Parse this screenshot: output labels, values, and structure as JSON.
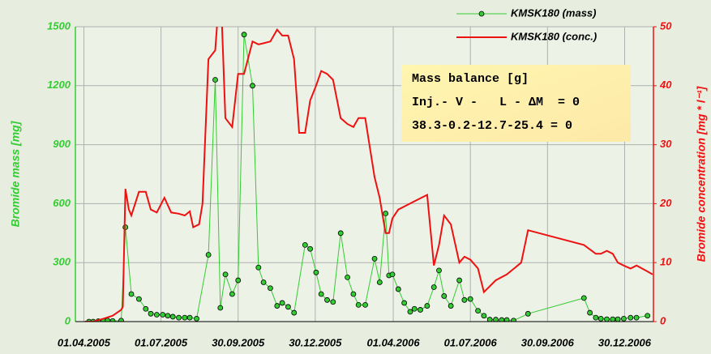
{
  "chart_data": {
    "type": "line",
    "legend_text": [
      "Mass balance [g]",
      "Inj.- V -   L - ΔM  = 0",
      "38.3-0.2-12.7-25.4 = 0"
    ],
    "ylabel": "Bromide mass [mg]",
    "y2label": "Bromide concentration [mg * l⁻¹]",
    "xlim": [
      "22.03.2005",
      "02.02.2007"
    ],
    "xticks": [
      "01.04.2005",
      "01.07.2005",
      "30.09.2005",
      "30.12.2005",
      "01.04.2006",
      "01.07.2006",
      "30.09.2006",
      "30.12.2006"
    ],
    "ylim": [
      0,
      1500
    ],
    "yticks": [
      0,
      300,
      600,
      900,
      1200,
      1500
    ],
    "y2lim": [
      0,
      50
    ],
    "y2ticks": [
      0,
      10,
      20,
      30,
      40,
      50
    ],
    "grid": true,
    "legend": "top-right",
    "series": [
      {
        "name": "KMSK180 (mass)",
        "color": "#33cc33",
        "marker": true,
        "x": [
          "07.04.2005",
          "12.04.2005",
          "18.04.2005",
          "24.04.2005",
          "29.04.2005",
          "05.05.2005",
          "15.05.2005",
          "20.05.2005",
          "27.05.2005",
          "05.06.2005",
          "13.06.2005",
          "19.06.2005",
          "26.06.2005",
          "03.07.2005",
          "09.07.2005",
          "15.07.2005",
          "22.07.2005",
          "29.07.2005",
          "04.08.2005",
          "12.08.2005",
          "26.08.2005",
          "03.09.2005",
          "09.09.2005",
          "15.09.2005",
          "23.09.2005",
          "30.09.2005",
          "07.10.2005",
          "17.10.2005",
          "24.10.2005",
          "30.10.2005",
          "07.11.2005",
          "15.11.2005",
          "21.11.2005",
          "28.11.2005",
          "05.12.2005",
          "18.12.2005",
          "24.12.2005",
          "31.12.2005",
          "06.01.2006",
          "13.01.2006",
          "20.01.2006",
          "29.01.2006",
          "06.02.2006",
          "13.02.2006",
          "19.02.2006",
          "27.02.2006",
          "10.03.2006",
          "16.03.2006",
          "23.03.2006",
          "27.03.2006",
          "31.03.2006",
          "07.04.2006",
          "14.04.2006",
          "21.04.2006",
          "26.04.2006",
          "03.05.2006",
          "11.05.2006",
          "19.05.2006",
          "25.05.2006",
          "31.05.2006",
          "08.06.2006",
          "18.06.2006",
          "24.06.2006",
          "01.07.2006",
          "10.07.2006",
          "17.07.2006",
          "24.07.2006",
          "31.07.2006",
          "07.08.2006",
          "13.08.2006",
          "21.08.2006",
          "07.09.2006",
          "12.11.2006",
          "19.11.2006",
          "26.11.2006",
          "02.12.2006",
          "09.12.2006",
          "16.12.2006",
          "22.12.2006",
          "29.12.2006",
          "06.01.2007",
          "13.01.2007",
          "26.01.2007"
        ],
        "values": [
          0,
          0,
          2,
          3,
          5,
          3,
          5,
          480,
          140,
          115,
          65,
          40,
          35,
          35,
          30,
          25,
          20,
          20,
          20,
          15,
          340,
          1230,
          70,
          240,
          140,
          210,
          1460,
          1200,
          275,
          200,
          170,
          80,
          95,
          75,
          45,
          390,
          370,
          250,
          140,
          110,
          100,
          450,
          225,
          140,
          85,
          85,
          320,
          200,
          550,
          235,
          240,
          165,
          95,
          50,
          65,
          60,
          80,
          175,
          260,
          130,
          80,
          210,
          110,
          115,
          55,
          30,
          10,
          10,
          8,
          8,
          5,
          40,
          120,
          45,
          20,
          15,
          12,
          12,
          12,
          15,
          20,
          20,
          30
        ]
      },
      {
        "name": "KMSK180 (conc.)",
        "color": "#ee1111",
        "axis": "y2",
        "marker": false,
        "x": [
          "02.04.2005",
          "12.04.2005",
          "24.04.2005",
          "05.05.2005",
          "15.05.2005",
          "17.05.2005",
          "20.05.2005",
          "24.05.2005",
          "27.05.2005",
          "05.06.2005",
          "13.06.2005",
          "19.06.2005",
          "26.06.2005",
          "05.07.2005",
          "13.07.2005",
          "22.07.2005",
          "29.07.2005",
          "04.08.2005",
          "08.08.2005",
          "15.08.2005",
          "19.08.2005",
          "26.08.2005",
          "03.09.2005",
          "09.09.2005",
          "15.09.2005",
          "23.09.2005",
          "30.09.2005",
          "07.10.2005",
          "17.10.2005",
          "24.10.2005",
          "30.10.2005",
          "07.11.2005",
          "15.11.2005",
          "21.11.2005",
          "28.11.2005",
          "05.12.2005",
          "11.12.2005",
          "18.12.2005",
          "24.12.2005",
          "31.12.2005",
          "06.01.2006",
          "13.01.2006",
          "20.01.2006",
          "29.01.2006",
          "06.02.2006",
          "13.02.2006",
          "19.02.2006",
          "27.02.2006",
          "10.03.2006",
          "16.03.2006",
          "23.03.2006",
          "27.03.2006",
          "31.03.2006",
          "07.04.2006",
          "11.05.2006",
          "19.05.2006",
          "25.05.2006",
          "31.05.2006",
          "08.06.2006",
          "18.06.2006",
          "24.06.2006",
          "01.07.2006",
          "10.07.2006",
          "17.07.2006",
          "31.07.2006",
          "13.08.2006",
          "30.08.2006",
          "07.09.2006",
          "12.11.2006",
          "26.11.2006",
          "02.12.2006",
          "09.12.2006",
          "16.12.2006",
          "22.12.2006",
          "29.12.2006",
          "06.01.2007",
          "13.01.2007",
          "26.01.2007",
          "01.02.2007"
        ],
        "values": [
          0,
          0,
          0.5,
          1,
          2,
          2.5,
          22.5,
          19,
          18,
          22,
          22,
          19,
          18.5,
          21,
          18.5,
          18.3,
          18,
          18.7,
          16,
          16.5,
          20,
          44.5,
          46,
          58,
          34.5,
          33,
          42,
          42,
          47.5,
          47,
          47.2,
          47.5,
          49.5,
          48.5,
          48.5,
          44.5,
          32,
          32,
          37.5,
          40,
          42.5,
          42,
          41,
          34.5,
          33.5,
          33,
          34.5,
          34.5,
          24.5,
          21,
          15,
          15,
          17.5,
          19,
          21.5,
          9.5,
          13,
          18,
          16.5,
          10,
          11,
          10.5,
          9,
          5,
          7,
          8,
          10,
          15.5,
          13,
          11.5,
          11.5,
          12,
          11.5,
          10,
          9.5,
          9,
          9.5,
          8.5,
          8
        ]
      }
    ]
  }
}
